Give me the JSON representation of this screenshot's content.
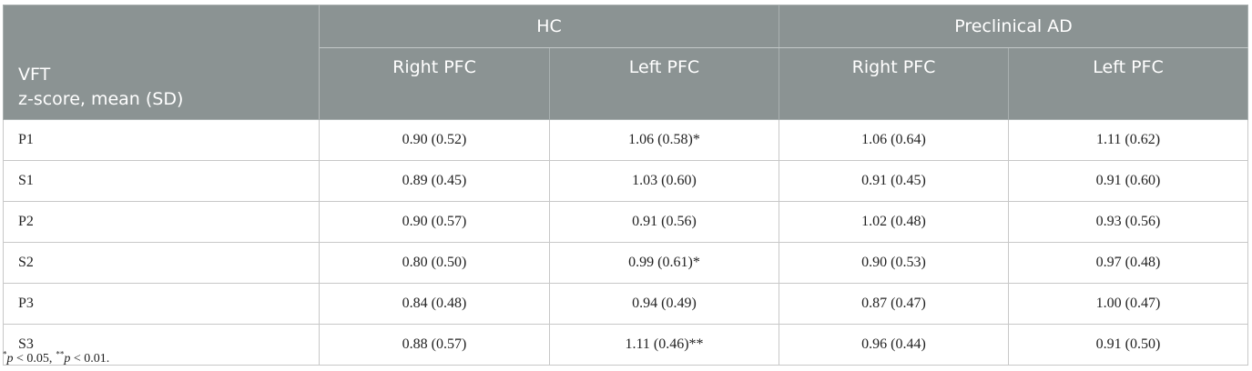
{
  "table": {
    "stub_header": [
      "VFT",
      "z-score, mean (SD)"
    ],
    "groups": [
      "HC",
      "Preclinical AD"
    ],
    "subheaders": [
      "Right PFC",
      "Left PFC",
      "Right PFC",
      "Left PFC"
    ],
    "rows": [
      [
        "P1",
        "0.90 (0.52)",
        "1.06 (0.58)*",
        "1.06 (0.64)",
        "1.11 (0.62)"
      ],
      [
        "S1",
        "0.89 (0.45)",
        "1.03 (0.60)",
        "0.91 (0.45)",
        "0.91 (0.60)"
      ],
      [
        "P2",
        "0.90 (0.57)",
        "0.91 (0.56)",
        "1.02 (0.48)",
        "0.93 (0.56)"
      ],
      [
        "S2",
        "0.80 (0.50)",
        "0.99 (0.61)*",
        "0.90 (0.53)",
        "0.97 (0.48)"
      ],
      [
        "P3",
        "0.84 (0.48)",
        "0.94 (0.49)",
        "0.87 (0.47)",
        "1.00 (0.47)"
      ],
      [
        "S3",
        "0.88 (0.57)",
        "1.11 (0.46)**",
        "0.96 (0.44)",
        "0.91 (0.50)"
      ]
    ]
  },
  "footnote": [
    {
      "mark": "*",
      "var": "p",
      "rest": " < 0.05,"
    },
    {
      "mark": "**",
      "var": "p",
      "rest": " < 0.01."
    }
  ]
}
